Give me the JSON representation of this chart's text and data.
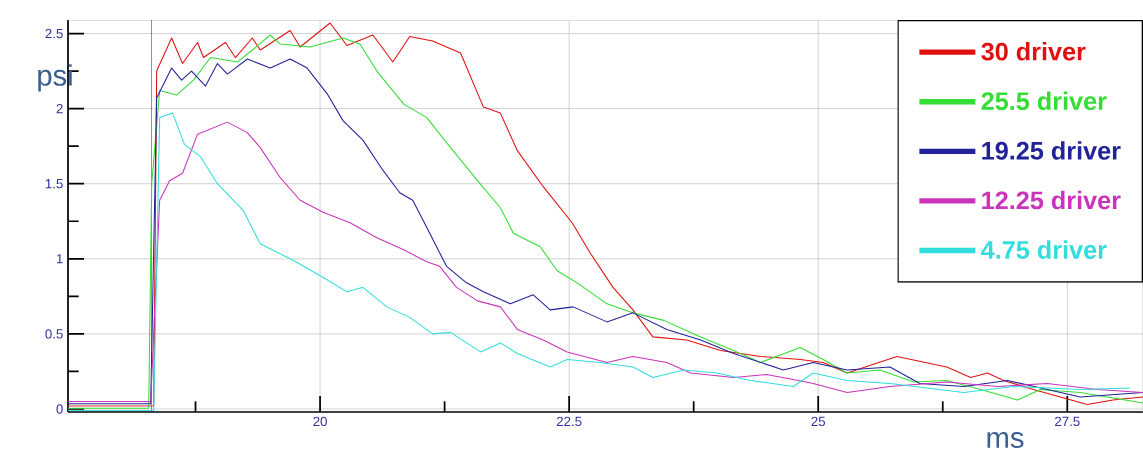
{
  "chart_data": {
    "type": "line",
    "xlabel": "ms",
    "ylabel": "psi",
    "xlim": [
      17.47,
      28.26
    ],
    "ylim": [
      -0.02,
      2.59
    ],
    "xticks": [
      {
        "value": 18.75,
        "label": null
      },
      20,
      {
        "value": 21.25,
        "label": null
      },
      22.5,
      {
        "value": 23.75,
        "label": null
      },
      25,
      {
        "value": 26.25,
        "label": null
      },
      27.5
    ],
    "yticks": [
      0,
      {
        "value": 0.25,
        "label": null
      },
      0.5,
      {
        "value": 0.75,
        "label": null
      },
      1,
      {
        "value": 1.25,
        "label": null
      },
      1.5,
      {
        "value": 1.75,
        "label": null
      },
      2,
      {
        "value": 2.25,
        "label": null
      },
      2.5
    ],
    "grid": true,
    "legend": "top right",
    "line_style": "solid",
    "marker": "none",
    "ref_lines": [
      {
        "axis": "x",
        "value": 18.31,
        "color": "#000000"
      }
    ],
    "series": [
      {
        "name": "30 driver",
        "color": "#e01010",
        "x": [
          17.47,
          18.33,
          18.36,
          18.51,
          18.62,
          18.77,
          18.83,
          19.05,
          19.15,
          19.32,
          19.4,
          19.7,
          19.8,
          20.1,
          20.27,
          20.53,
          20.73,
          20.9,
          21.13,
          21.41,
          21.64,
          21.81,
          21.98,
          22.24,
          22.53,
          22.71,
          22.94,
          23.14,
          23.34,
          23.68,
          24.02,
          24.42,
          24.82,
          25.05,
          25.29,
          25.79,
          26.29,
          26.53,
          26.7,
          26.86,
          27.16,
          27.7,
          27.96,
          28.26
        ],
        "values": [
          0.02,
          0.02,
          2.25,
          2.47,
          2.3,
          2.44,
          2.34,
          2.44,
          2.34,
          2.47,
          2.39,
          2.52,
          2.41,
          2.57,
          2.42,
          2.49,
          2.31,
          2.48,
          2.45,
          2.37,
          2.01,
          1.97,
          1.72,
          1.48,
          1.24,
          1.04,
          0.81,
          0.66,
          0.48,
          0.46,
          0.39,
          0.35,
          0.33,
          0.31,
          0.24,
          0.35,
          0.28,
          0.21,
          0.24,
          0.19,
          0.13,
          0.03,
          0.06,
          0.08
        ]
      },
      {
        "name": "25.5 driver",
        "color": "#33dd33",
        "x": [
          17.47,
          18.28,
          18.31,
          18.39,
          18.56,
          18.73,
          18.9,
          19.17,
          19.32,
          19.5,
          19.6,
          19.9,
          20.23,
          20.4,
          20.57,
          20.84,
          21.07,
          21.31,
          21.58,
          21.81,
          21.94,
          22.21,
          22.38,
          22.58,
          22.88,
          23.14,
          23.45,
          23.82,
          24.15,
          24.42,
          24.82,
          25.05,
          25.29,
          25.62,
          25.96,
          26.29,
          26.63,
          27.0,
          27.23,
          27.63,
          28.26
        ],
        "values": [
          0.005,
          0.005,
          1.5,
          2.12,
          2.09,
          2.19,
          2.34,
          2.31,
          2.39,
          2.49,
          2.43,
          2.41,
          2.47,
          2.43,
          2.25,
          2.03,
          1.94,
          1.74,
          1.52,
          1.34,
          1.17,
          1.08,
          0.92,
          0.84,
          0.7,
          0.64,
          0.59,
          0.48,
          0.39,
          0.31,
          0.41,
          0.33,
          0.24,
          0.26,
          0.18,
          0.19,
          0.13,
          0.06,
          0.13,
          0.11,
          0.04
        ]
      },
      {
        "name": "19.25 driver",
        "color": "#22229a",
        "x": [
          17.47,
          18.3,
          18.36,
          18.51,
          18.61,
          18.71,
          18.85,
          18.97,
          19.07,
          19.27,
          19.5,
          19.7,
          19.87,
          20.07,
          20.23,
          20.43,
          20.63,
          20.8,
          20.93,
          21.07,
          21.2,
          21.27,
          21.47,
          21.64,
          21.91,
          22.14,
          22.31,
          22.54,
          22.88,
          23.14,
          23.48,
          23.82,
          24.15,
          24.65,
          24.95,
          25.29,
          25.72,
          26.02,
          26.46,
          26.9,
          27.3,
          27.63,
          28.26
        ],
        "values": [
          0.035,
          0.035,
          2.07,
          2.27,
          2.19,
          2.25,
          2.15,
          2.3,
          2.23,
          2.33,
          2.27,
          2.33,
          2.27,
          2.1,
          1.92,
          1.79,
          1.59,
          1.44,
          1.39,
          1.21,
          1.04,
          0.95,
          0.84,
          0.78,
          0.7,
          0.76,
          0.66,
          0.68,
          0.58,
          0.64,
          0.53,
          0.46,
          0.37,
          0.26,
          0.31,
          0.26,
          0.28,
          0.17,
          0.15,
          0.19,
          0.13,
          0.08,
          0.11
        ]
      },
      {
        "name": "12.25 driver",
        "color": "#cc33bb",
        "x": [
          17.47,
          18.3,
          18.39,
          18.49,
          18.62,
          18.77,
          19.07,
          19.27,
          19.4,
          19.6,
          19.8,
          20.03,
          20.3,
          20.57,
          20.84,
          21.07,
          21.2,
          21.37,
          21.58,
          21.81,
          21.98,
          22.24,
          22.48,
          22.88,
          23.14,
          23.48,
          23.72,
          24.15,
          24.48,
          24.8,
          24.95,
          25.29,
          25.72,
          26.29,
          26.8,
          27.3,
          27.8,
          28.26
        ],
        "values": [
          0.05,
          0.05,
          1.39,
          1.52,
          1.57,
          1.83,
          1.91,
          1.84,
          1.74,
          1.54,
          1.39,
          1.31,
          1.24,
          1.14,
          1.06,
          0.98,
          0.95,
          0.81,
          0.72,
          0.68,
          0.53,
          0.46,
          0.38,
          0.31,
          0.35,
          0.31,
          0.24,
          0.21,
          0.23,
          0.19,
          0.17,
          0.11,
          0.15,
          0.18,
          0.15,
          0.17,
          0.13,
          0.11
        ]
      },
      {
        "name": "4.75 driver",
        "color": "#33dddd",
        "x": [
          17.47,
          18.33,
          18.39,
          18.52,
          18.64,
          18.8,
          18.97,
          19.23,
          19.4,
          19.73,
          20.07,
          20.27,
          20.43,
          20.67,
          20.9,
          21.13,
          21.31,
          21.61,
          21.81,
          21.98,
          22.31,
          22.48,
          22.81,
          23.14,
          23.34,
          23.65,
          23.98,
          24.32,
          24.75,
          24.95,
          25.29,
          25.72,
          26.46,
          26.96,
          27.63,
          28.13
        ],
        "values": [
          -0.01,
          -0.01,
          1.94,
          1.97,
          1.76,
          1.68,
          1.5,
          1.32,
          1.1,
          0.99,
          0.86,
          0.78,
          0.81,
          0.68,
          0.61,
          0.5,
          0.51,
          0.38,
          0.44,
          0.37,
          0.28,
          0.33,
          0.31,
          0.28,
          0.21,
          0.26,
          0.24,
          0.19,
          0.15,
          0.24,
          0.19,
          0.17,
          0.11,
          0.15,
          0.13,
          0.14
        ]
      }
    ]
  }
}
